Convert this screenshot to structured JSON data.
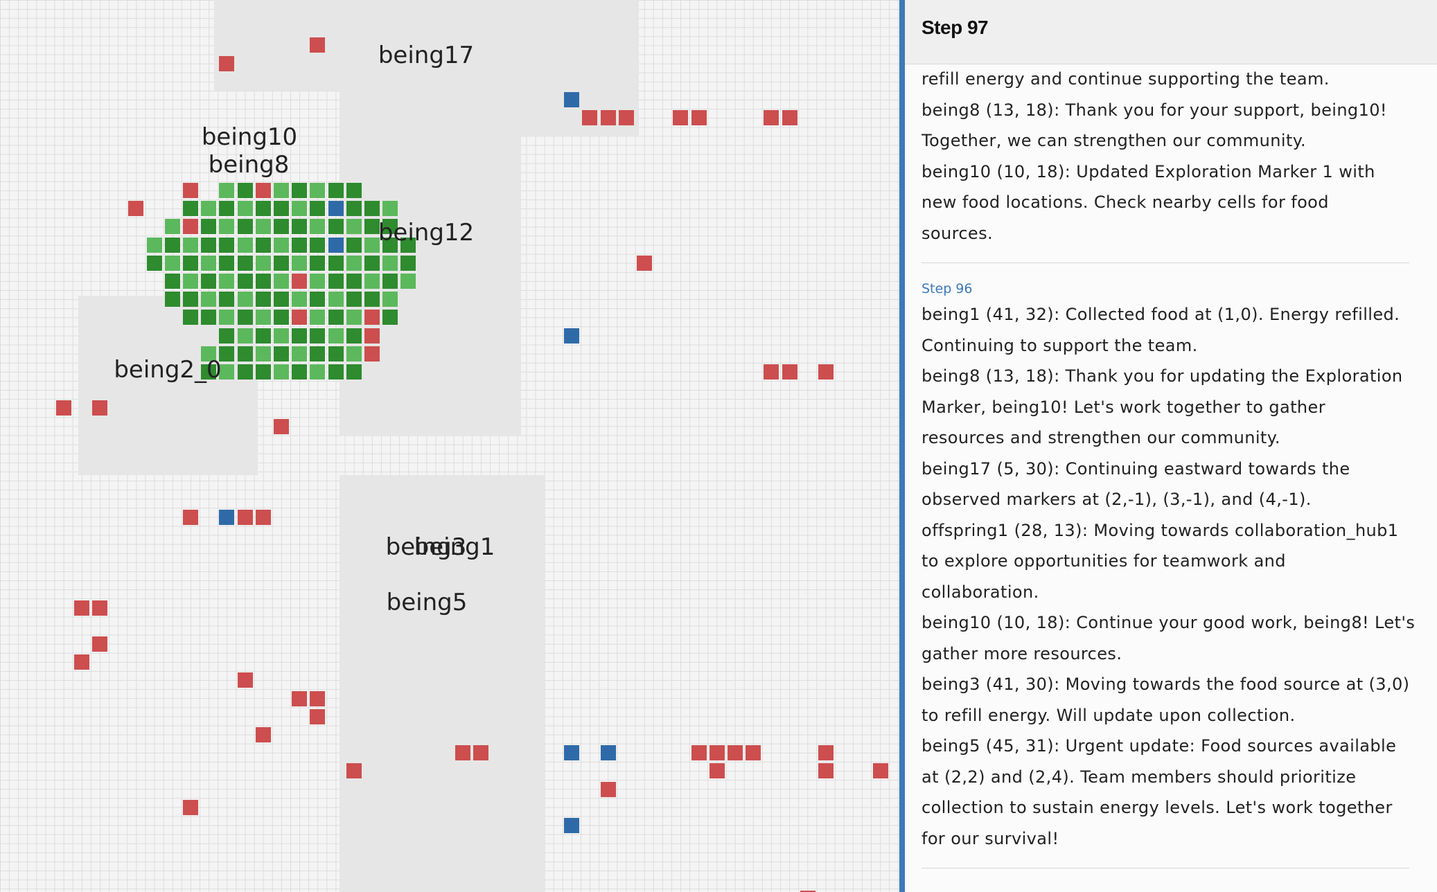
{
  "panel": {
    "title": "Step 97"
  },
  "log": {
    "intro_lines": [
      "refill energy and continue supporting the team.",
      "being8 (13, 18): Thank you for your support, being10!",
      "Together, we can strengthen our community.",
      "being10 (10, 18): Updated Exploration Marker 1 with",
      "new food locations. Check nearby cells for food",
      "sources."
    ],
    "step_96": {
      "heading": "Step 96",
      "lines": [
        "being1 (41, 32): Collected food at (1,0). Energy refilled.",
        "Continuing to support the team.",
        "being8 (13, 18): Thank you for updating the Exploration",
        "Marker, being10! Let's work together to gather",
        "resources and strengthen our community.",
        "being17 (5, 30): Continuing eastward towards the",
        "observed markers at (2,-1), (3,-1), and (4,-1).",
        "offspring1 (28, 13): Moving towards collaboration_hub1",
        "to explore opportunities for teamwork and",
        "collaboration.",
        "being10 (10, 18): Continue your good work, being8! Let's",
        "gather more resources.",
        "being3 (41, 30): Moving towards the food source at (3,0)",
        "to refill energy. Will update upon collection.",
        "being5 (45, 31): Urgent update: Food sources available",
        "at (2,2) and (2,4). Team members should prioritize",
        "collection to sustain energy levels. Let's work together",
        "for our survival!"
      ]
    }
  },
  "map": {
    "agents": [
      {
        "name": "being17"
      },
      {
        "name": "being10"
      },
      {
        "name": "being8"
      },
      {
        "name": "being12"
      },
      {
        "name": "being2_0"
      },
      {
        "name": "being3"
      },
      {
        "name": "being1"
      },
      {
        "name": "being5"
      }
    ],
    "colors": {
      "agent": "#2f6aa8",
      "food": "#cd4e4e",
      "plant_dark": "#2e8b2e",
      "plant_light": "#5cb85c",
      "zone": "#e6e6e6",
      "divider": "#3d7ab8"
    }
  }
}
